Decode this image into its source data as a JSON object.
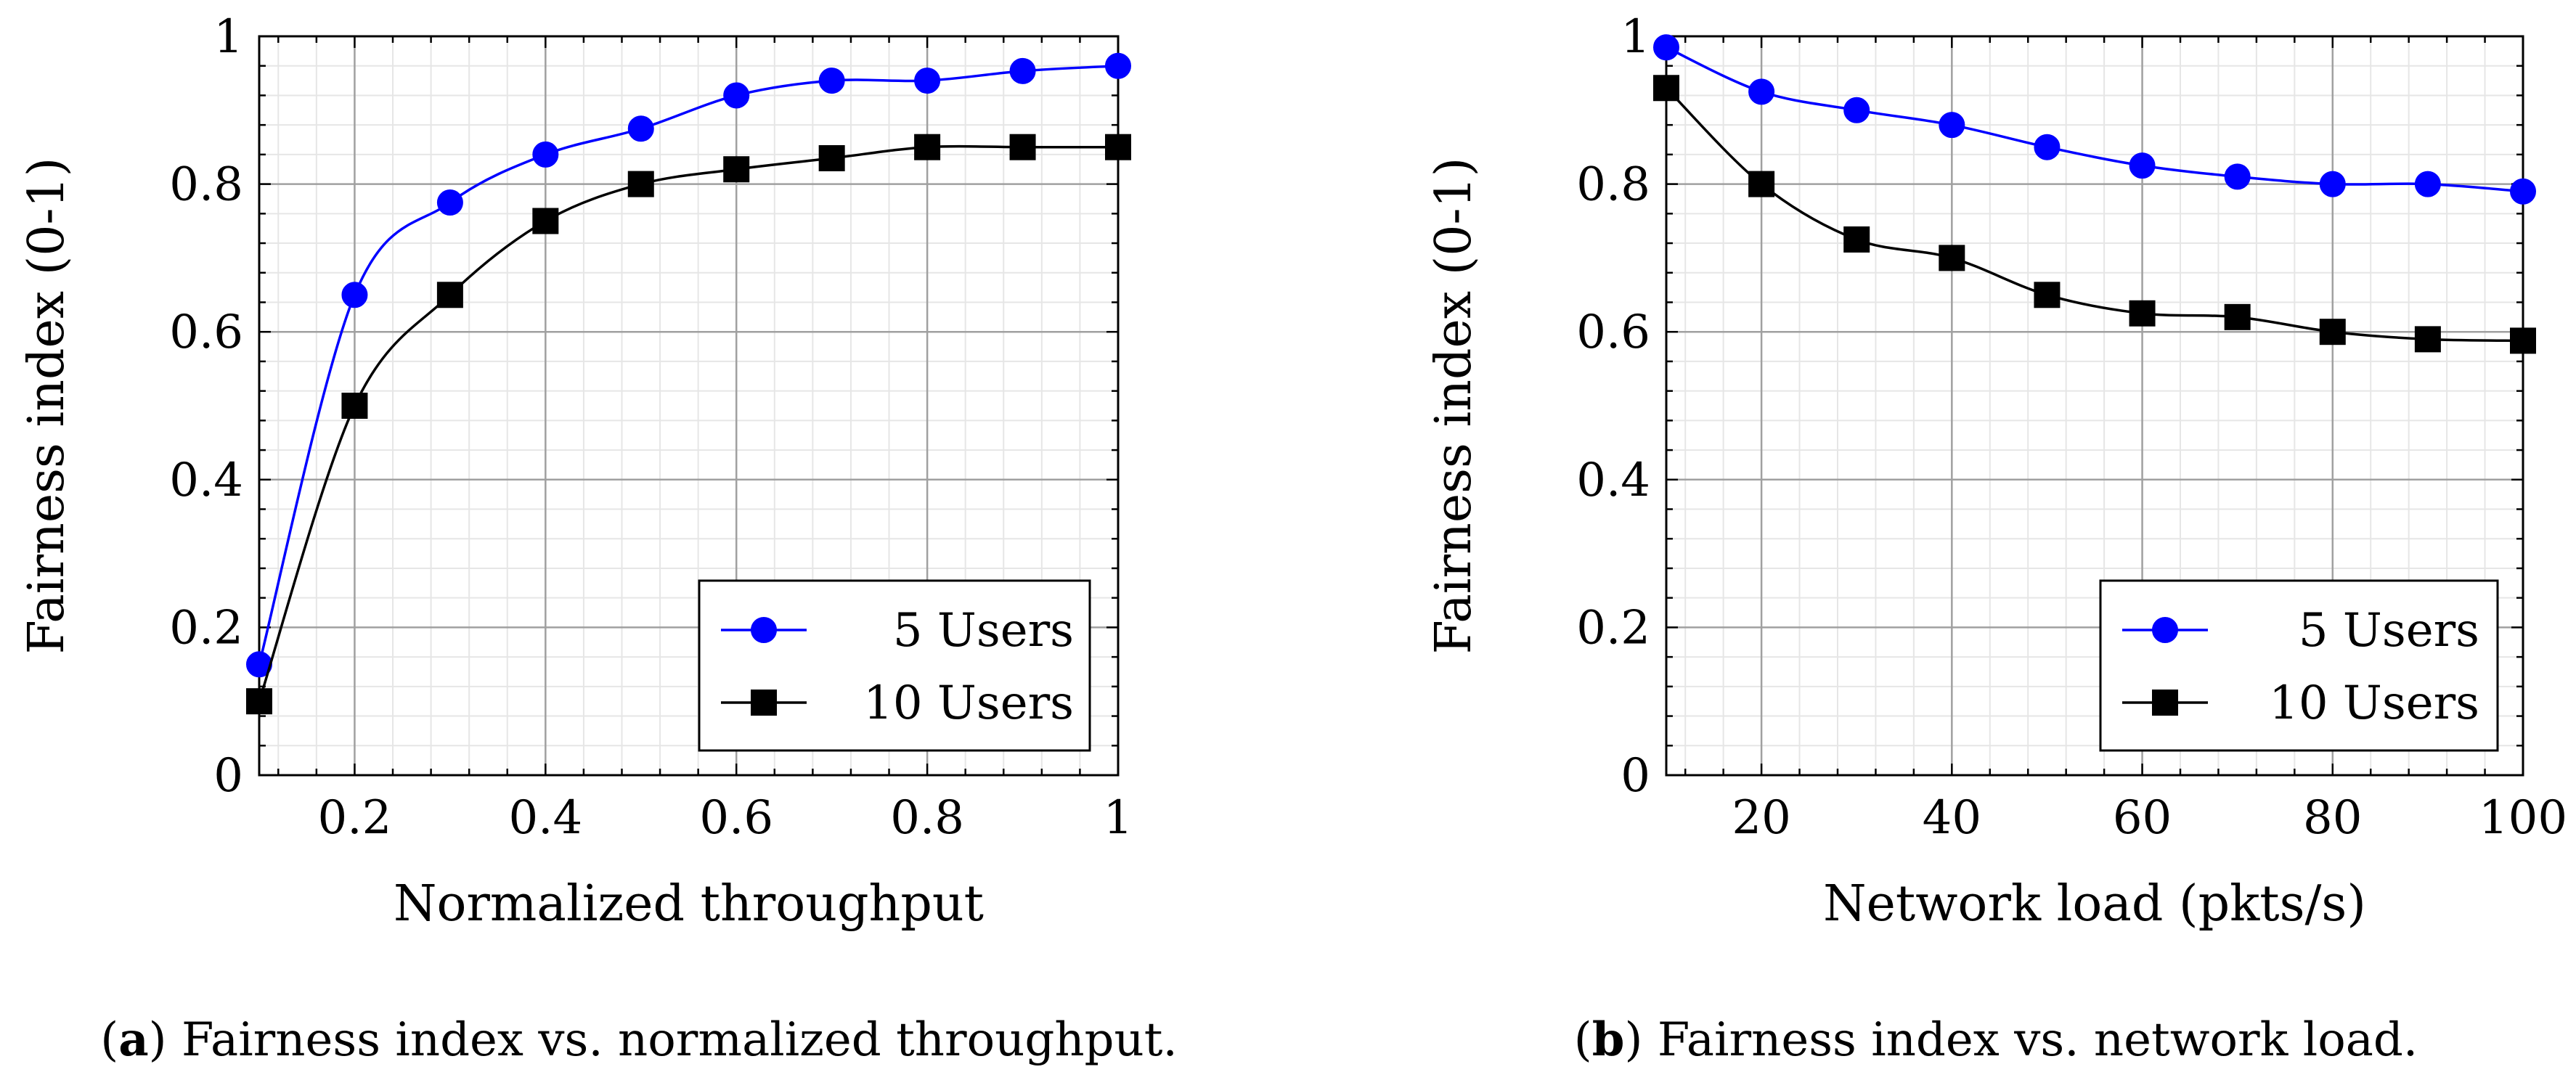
{
  "colors": {
    "series_5": "#0000ff",
    "series_10": "#000000",
    "grid_major": "#a0a0a0",
    "grid_minor": "#e6e6e6",
    "axis": "#000000"
  },
  "captions": [
    {
      "letter": "a",
      "text": "Fairness index vs. normalized throughput."
    },
    {
      "letter": "b",
      "text": "Fairness index vs. network load."
    }
  ],
  "chart_data": [
    {
      "id": "a",
      "type": "line",
      "xlabel": "Normalized throughput",
      "ylabel": "Fairness index (0-1)",
      "xlim": [
        0.1,
        1.0
      ],
      "ylim": [
        0,
        1
      ],
      "xticks": [
        0.2,
        0.4,
        0.6,
        0.8,
        1.0
      ],
      "xtick_labels": [
        "0.2",
        "0.4",
        "0.6",
        "0.8",
        "1"
      ],
      "yticks": [
        0,
        0.2,
        0.4,
        0.6,
        0.8,
        1.0
      ],
      "ytick_labels": [
        "0",
        "0.2",
        "0.4",
        "0.6",
        "0.8",
        "1"
      ],
      "x_major_step": 0.2,
      "x_minor_step": 0.04,
      "y_major_step": 0.2,
      "y_minor_step": 0.04,
      "grid": true,
      "legend": "bottom-right",
      "series": [
        {
          "name": "5 Users",
          "marker": "circle",
          "color": "#0000ff",
          "x": [
            0.1,
            0.2,
            0.3,
            0.4,
            0.5,
            0.6,
            0.7,
            0.8,
            0.9,
            1.0
          ],
          "values": [
            0.15,
            0.65,
            0.775,
            0.84,
            0.875,
            0.92,
            0.94,
            0.94,
            0.953,
            0.96
          ]
        },
        {
          "name": "10 Users",
          "marker": "square",
          "color": "#000000",
          "x": [
            0.1,
            0.2,
            0.3,
            0.4,
            0.5,
            0.6,
            0.7,
            0.8,
            0.9,
            1.0
          ],
          "values": [
            0.1,
            0.5,
            0.65,
            0.75,
            0.8,
            0.82,
            0.835,
            0.85,
            0.85,
            0.85
          ]
        }
      ]
    },
    {
      "id": "b",
      "type": "line",
      "xlabel": "Network load (pkts/s)",
      "ylabel": "Fairness index (0-1)",
      "xlim": [
        10,
        100
      ],
      "ylim": [
        0,
        1
      ],
      "xticks": [
        20,
        40,
        60,
        80,
        100
      ],
      "xtick_labels": [
        "20",
        "40",
        "60",
        "80",
        "100"
      ],
      "yticks": [
        0,
        0.2,
        0.4,
        0.6,
        0.8,
        1.0
      ],
      "ytick_labels": [
        "0",
        "0.2",
        "0.4",
        "0.6",
        "0.8",
        "1"
      ],
      "x_major_step": 20,
      "x_minor_step": 4,
      "y_major_step": 0.2,
      "y_minor_step": 0.04,
      "grid": true,
      "legend": "bottom-right",
      "series": [
        {
          "name": "5 Users",
          "marker": "circle",
          "color": "#0000ff",
          "x": [
            10,
            20,
            30,
            40,
            50,
            60,
            70,
            80,
            90,
            100
          ],
          "values": [
            0.985,
            0.925,
            0.9,
            0.88,
            0.85,
            0.825,
            0.81,
            0.8,
            0.8,
            0.79
          ]
        },
        {
          "name": "10 Users",
          "marker": "square",
          "color": "#000000",
          "x": [
            10,
            20,
            30,
            40,
            50,
            60,
            70,
            80,
            90,
            100
          ],
          "values": [
            0.93,
            0.8,
            0.725,
            0.7,
            0.65,
            0.625,
            0.62,
            0.6,
            0.59,
            0.588
          ]
        }
      ]
    }
  ]
}
